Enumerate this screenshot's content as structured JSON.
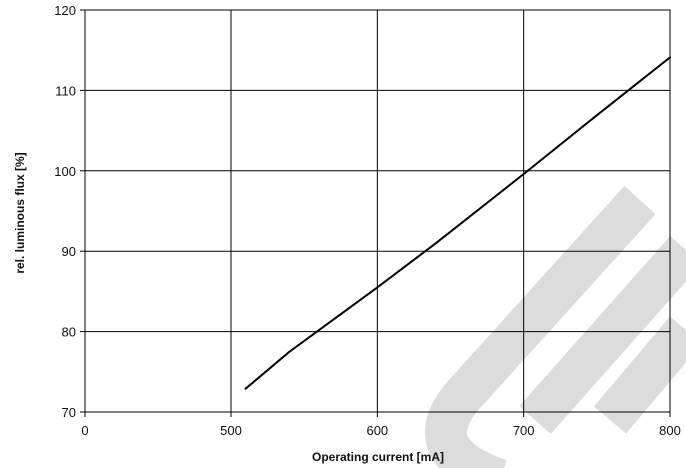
{
  "chart_data": {
    "type": "line",
    "title": "",
    "xlabel": "Operating current [mA]",
    "ylabel": "rel. luminous flux [%]",
    "xlim": [
      0,
      800
    ],
    "ylim": [
      70,
      120
    ],
    "x_ticks": [
      {
        "value": 0,
        "label": "0"
      },
      {
        "value": 500,
        "label": "500"
      },
      {
        "value": 600,
        "label": "600"
      },
      {
        "value": 700,
        "label": "700"
      },
      {
        "value": 800,
        "label": "800"
      }
    ],
    "y_ticks": [
      {
        "value": 70,
        "label": "70"
      },
      {
        "value": 80,
        "label": "80"
      },
      {
        "value": 90,
        "label": "90"
      },
      {
        "value": 100,
        "label": "100"
      },
      {
        "value": 110,
        "label": "110"
      },
      {
        "value": 120,
        "label": "120"
      }
    ],
    "x_axis_broken": true,
    "grid": true,
    "legend": "none",
    "series": [
      {
        "color": "#000000",
        "x": [
          510,
          540,
          600,
          640,
          700,
          750,
          800
        ],
        "y": [
          72.9,
          77.5,
          85.5,
          91.0,
          99.6,
          106.9,
          114.1
        ]
      }
    ],
    "watermark_color": "#dcdcdc"
  }
}
